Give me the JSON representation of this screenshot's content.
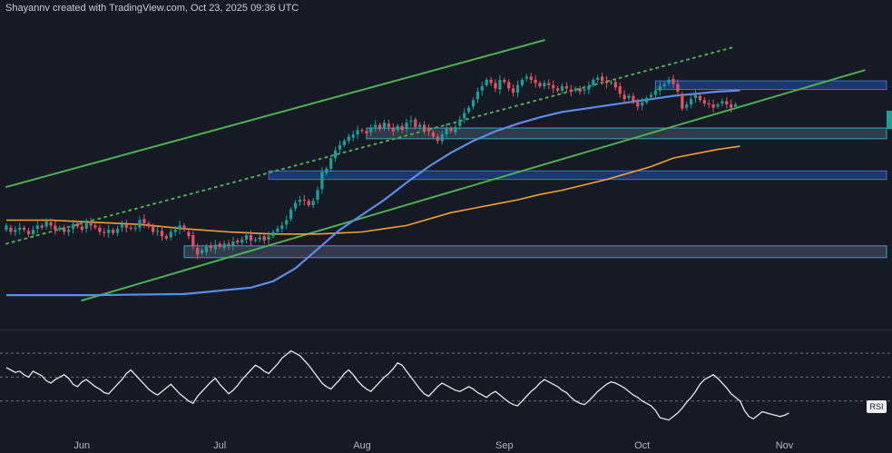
{
  "header": {
    "credit": "Shayannv created with TradingView.com, Oct 23, 2025 09:36 UTC"
  },
  "rsi_pane": {
    "label": "RSI"
  },
  "colors": {
    "background": "#161a25",
    "bull_candle": "#1aa09a",
    "bear_candle": "#e2545f",
    "channel": "#4caf50",
    "ma_fast": "#5b8de6",
    "ma_slow": "#f0a030",
    "zone_blue_fill": "#1d3d7c",
    "zone_blue_stroke": "#3e6fd0",
    "zone_grey_fill": "#3c4457",
    "zone_grey_stroke": "#35a6bd",
    "rsi_line": "#e6e8ee",
    "rsi_level": "#6a6f7c"
  },
  "chart_data": [
    {
      "type": "candlestick",
      "title": "",
      "xlabel": "",
      "ylabel": "",
      "x_ticks": [
        "Jun",
        "Jul",
        "Aug",
        "Sep",
        "Oct",
        "Nov"
      ],
      "y_tick_labels": [],
      "legend": [],
      "grid": false,
      "candles": [
        [
          0.66,
          0.7
        ],
        [
          0.68,
          0.64
        ],
        [
          0.64,
          0.66
        ],
        [
          0.66,
          0.68
        ],
        [
          0.68,
          0.66
        ],
        [
          0.65,
          0.62
        ],
        [
          0.62,
          0.66
        ],
        [
          0.67,
          0.7
        ],
        [
          0.7,
          0.68
        ],
        [
          0.69,
          0.74
        ],
        [
          0.73,
          0.7
        ],
        [
          0.7,
          0.66
        ],
        [
          0.66,
          0.68
        ],
        [
          0.68,
          0.64
        ],
        [
          0.64,
          0.66
        ],
        [
          0.67,
          0.71
        ],
        [
          0.72,
          0.69
        ],
        [
          0.69,
          0.66
        ],
        [
          0.67,
          0.73
        ],
        [
          0.73,
          0.7
        ],
        [
          0.7,
          0.68
        ],
        [
          0.68,
          0.64
        ],
        [
          0.64,
          0.63
        ],
        [
          0.63,
          0.66
        ],
        [
          0.66,
          0.63
        ],
        [
          0.63,
          0.67
        ],
        [
          0.68,
          0.71
        ],
        [
          0.71,
          0.68
        ],
        [
          0.68,
          0.67
        ],
        [
          0.67,
          0.68
        ],
        [
          0.68,
          0.75
        ],
        [
          0.76,
          0.72
        ],
        [
          0.72,
          0.69
        ],
        [
          0.69,
          0.64
        ],
        [
          0.64,
          0.65
        ],
        [
          0.65,
          0.6
        ],
        [
          0.6,
          0.58
        ],
        [
          0.59,
          0.64
        ],
        [
          0.64,
          0.66
        ],
        [
          0.66,
          0.7
        ],
        [
          0.7,
          0.66
        ],
        [
          0.64,
          0.6
        ],
        [
          0.61,
          0.51
        ],
        [
          0.49,
          0.43
        ],
        [
          0.44,
          0.47
        ],
        [
          0.45,
          0.5
        ],
        [
          0.51,
          0.49
        ],
        [
          0.48,
          0.52
        ],
        [
          0.53,
          0.5
        ],
        [
          0.49,
          0.53
        ],
        [
          0.53,
          0.51
        ],
        [
          0.51,
          0.55
        ],
        [
          0.56,
          0.54
        ],
        [
          0.54,
          0.57
        ],
        [
          0.57,
          0.61
        ],
        [
          0.61,
          0.56
        ],
        [
          0.56,
          0.57
        ],
        [
          0.57,
          0.59
        ],
        [
          0.6,
          0.56
        ],
        [
          0.57,
          0.6
        ],
        [
          0.6,
          0.64
        ],
        [
          0.64,
          0.67
        ],
        [
          0.67,
          0.7
        ],
        [
          0.71,
          0.75
        ],
        [
          0.76,
          0.85
        ],
        [
          0.86,
          0.91
        ],
        [
          0.92,
          0.94
        ],
        [
          0.94,
          0.93
        ],
        [
          0.93,
          0.89
        ],
        [
          0.89,
          0.93
        ],
        [
          0.94,
          1.03
        ],
        [
          1.04,
          1.2
        ],
        [
          1.19,
          1.23
        ],
        [
          1.23,
          1.33
        ],
        [
          1.33,
          1.4
        ],
        [
          1.41,
          1.45
        ],
        [
          1.45,
          1.49
        ],
        [
          1.49,
          1.53
        ],
        [
          1.52,
          1.55
        ],
        [
          1.55,
          1.59
        ],
        [
          1.59,
          1.58
        ],
        [
          1.58,
          1.56
        ],
        [
          1.57,
          1.61
        ],
        [
          1.62,
          1.64
        ],
        [
          1.64,
          1.6
        ],
        [
          1.61,
          1.66
        ],
        [
          1.65,
          1.62
        ],
        [
          1.61,
          1.58
        ],
        [
          1.59,
          1.63
        ],
        [
          1.63,
          1.59
        ],
        [
          1.6,
          1.66
        ],
        [
          1.67,
          1.68
        ],
        [
          1.69,
          1.62
        ],
        [
          1.62,
          1.64
        ],
        [
          1.64,
          1.59
        ],
        [
          1.6,
          1.58
        ],
        [
          1.57,
          1.53
        ],
        [
          1.53,
          1.49
        ],
        [
          1.49,
          1.55
        ],
        [
          1.55,
          1.61
        ],
        [
          1.61,
          1.58
        ],
        [
          1.57,
          1.62
        ],
        [
          1.63,
          1.69
        ],
        [
          1.7,
          1.75
        ],
        [
          1.76,
          1.8
        ],
        [
          1.81,
          1.87
        ],
        [
          1.88,
          1.95
        ],
        [
          1.96,
          2.0
        ],
        [
          2.01,
          2.06
        ],
        [
          2.06,
          2.03
        ],
        [
          2.03,
          1.98
        ],
        [
          1.97,
          2.06
        ],
        [
          2.06,
          2.04
        ],
        [
          2.04,
          1.98
        ],
        [
          1.98,
          1.94
        ],
        [
          1.94,
          2.01
        ],
        [
          2.01,
          2.06
        ],
        [
          2.07,
          2.09
        ],
        [
          2.09,
          2.06
        ],
        [
          2.06,
          2.03
        ],
        [
          2.03,
          2.0
        ],
        [
          2.0,
          2.03
        ],
        [
          2.03,
          2.01
        ],
        [
          2.01,
          1.98
        ],
        [
          1.98,
          1.96
        ],
        [
          1.96,
          2.0
        ],
        [
          2.0,
          1.98
        ],
        [
          1.97,
          1.95
        ],
        [
          1.96,
          1.98
        ],
        [
          1.98,
          1.95
        ],
        [
          1.96,
          1.97
        ],
        [
          1.97,
          2.0
        ],
        [
          2.01,
          2.06
        ],
        [
          2.06,
          2.08
        ],
        [
          2.09,
          2.05
        ],
        [
          2.05,
          2.03
        ],
        [
          2.03,
          2.04
        ],
        [
          2.04,
          1.99
        ],
        [
          2.0,
          1.93
        ],
        [
          1.92,
          1.88
        ],
        [
          1.89,
          1.91
        ],
        [
          1.91,
          1.86
        ],
        [
          1.85,
          1.81
        ],
        [
          1.82,
          1.85
        ],
        [
          1.85,
          1.89
        ],
        [
          1.9,
          1.92
        ],
        [
          1.92,
          1.96
        ],
        [
          1.96,
          2.0
        ],
        [
          2.0,
          2.02
        ],
        [
          2.03,
          2.06
        ],
        [
          2.07,
          2.02
        ],
        [
          2.02,
          1.95
        ],
        [
          1.93,
          1.79
        ],
        [
          1.8,
          1.83
        ],
        [
          1.83,
          1.88
        ],
        [
          1.89,
          1.92
        ],
        [
          1.91,
          1.87
        ],
        [
          1.87,
          1.84
        ],
        [
          1.84,
          1.83
        ],
        [
          1.83,
          1.8
        ],
        [
          1.81,
          1.83
        ],
        [
          1.84,
          1.86
        ],
        [
          1.86,
          1.83
        ],
        [
          1.83,
          1.8
        ],
        [
          1.81,
          1.83
        ]
      ],
      "ma_fast": [
        [
          0,
          0.05
        ],
        [
          20,
          0.05
        ],
        [
          40,
          0.06
        ],
        [
          45,
          0.08
        ],
        [
          50,
          0.1
        ],
        [
          55,
          0.12
        ],
        [
          60,
          0.18
        ],
        [
          65,
          0.3
        ],
        [
          70,
          0.48
        ],
        [
          75,
          0.66
        ],
        [
          80,
          0.8
        ],
        [
          85,
          0.94
        ],
        [
          90,
          1.1
        ],
        [
          95,
          1.25
        ],
        [
          100,
          1.38
        ],
        [
          105,
          1.49
        ],
        [
          110,
          1.58
        ],
        [
          115,
          1.65
        ],
        [
          120,
          1.71
        ],
        [
          125,
          1.76
        ],
        [
          130,
          1.79
        ],
        [
          135,
          1.82
        ],
        [
          140,
          1.85
        ],
        [
          145,
          1.88
        ],
        [
          150,
          1.91
        ],
        [
          155,
          1.93
        ],
        [
          160,
          1.95
        ],
        [
          165,
          1.96
        ]
      ],
      "ma_slow": [
        [
          0,
          0.75
        ],
        [
          10,
          0.75
        ],
        [
          20,
          0.73
        ],
        [
          30,
          0.71
        ],
        [
          40,
          0.67
        ],
        [
          50,
          0.64
        ],
        [
          55,
          0.63
        ],
        [
          60,
          0.62
        ],
        [
          65,
          0.62
        ],
        [
          70,
          0.62
        ],
        [
          75,
          0.63
        ],
        [
          80,
          0.64
        ],
        [
          85,
          0.67
        ],
        [
          90,
          0.7
        ],
        [
          95,
          0.76
        ],
        [
          100,
          0.82
        ],
        [
          105,
          0.86
        ],
        [
          110,
          0.9
        ],
        [
          115,
          0.94
        ],
        [
          120,
          0.99
        ],
        [
          125,
          1.03
        ],
        [
          130,
          1.08
        ],
        [
          135,
          1.13
        ],
        [
          140,
          1.19
        ],
        [
          145,
          1.25
        ],
        [
          150,
          1.33
        ],
        [
          155,
          1.37
        ],
        [
          160,
          1.41
        ],
        [
          165,
          1.44
        ]
      ],
      "channel_upper": [
        [
          0,
          1.06
        ],
        [
          121,
          2.43
        ]
      ],
      "channel_lower": [
        [
          17,
          0.0
        ],
        [
          193,
          2.15
        ]
      ],
      "channel_mid_dotted": [
        [
          0,
          0.53
        ],
        [
          164,
          2.37
        ]
      ],
      "zones": [
        {
          "name": "",
          "kind": "blue",
          "x": [
            146,
            198
          ],
          "y": [
            1.97,
            2.05
          ]
        },
        {
          "name": "",
          "kind": "grey",
          "x": [
            81,
            198
          ],
          "y": [
            1.51,
            1.61
          ]
        },
        {
          "name": "",
          "kind": "blue",
          "x": [
            59,
            198
          ],
          "y": [
            1.13,
            1.21
          ]
        },
        {
          "name": "",
          "kind": "grey",
          "x": [
            40,
            198
          ],
          "y": [
            0.4,
            0.51
          ]
        }
      ],
      "rsi": [
        58,
        56,
        54,
        55,
        52,
        50,
        55,
        53,
        51,
        47,
        45,
        48,
        50,
        52,
        49,
        44,
        42,
        46,
        48,
        45,
        42,
        40,
        37,
        36,
        40,
        44,
        48,
        53,
        56,
        52,
        48,
        44,
        40,
        37,
        35,
        38,
        41,
        44,
        40,
        36,
        33,
        30,
        28,
        34,
        38,
        42,
        46,
        49,
        44,
        40,
        36,
        39,
        43,
        48,
        52,
        56,
        60,
        58,
        55,
        53,
        57,
        61,
        66,
        69,
        72,
        70,
        68,
        64,
        60,
        55,
        50,
        45,
        42,
        40,
        44,
        48,
        53,
        56,
        52,
        47,
        43,
        40,
        38,
        42,
        46,
        50,
        53,
        57,
        62,
        60,
        55,
        50,
        45,
        40,
        36,
        34,
        38,
        42,
        45,
        43,
        41,
        39,
        38,
        40,
        42,
        40,
        37,
        35,
        33,
        36,
        38,
        35,
        32,
        29,
        27,
        26,
        30,
        34,
        38,
        41,
        45,
        48,
        46,
        44,
        42,
        39,
        37,
        33,
        30,
        28,
        27,
        30,
        34,
        38,
        41,
        44,
        46,
        45,
        43,
        41,
        38,
        35,
        33,
        30,
        28,
        26,
        22,
        16,
        15,
        14,
        17,
        20,
        24,
        29,
        33,
        38,
        44,
        48,
        50,
        52,
        49,
        45,
        41,
        36,
        33,
        30,
        22,
        17,
        15,
        18,
        21,
        20,
        19,
        18,
        17,
        18,
        20
      ],
      "rsi_levels": [
        70,
        50,
        30
      ]
    }
  ]
}
